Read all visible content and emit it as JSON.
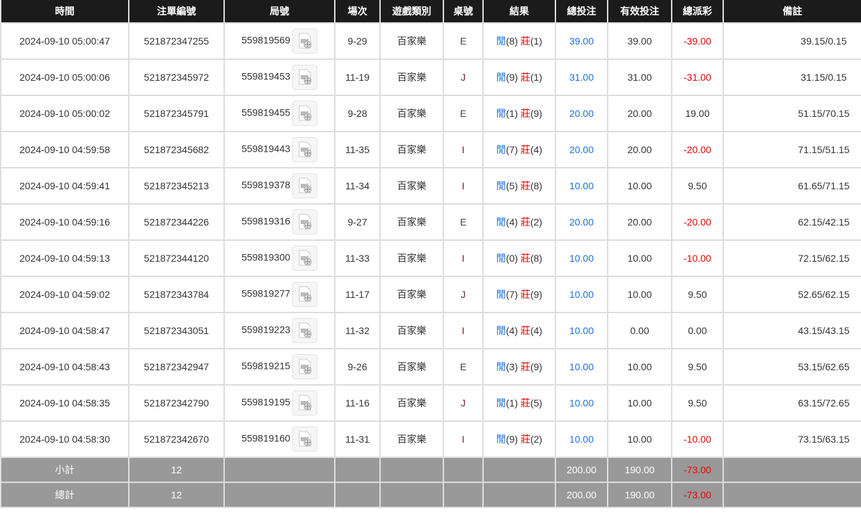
{
  "headers": [
    "時間",
    "注單編號",
    "局號",
    "場次",
    "遊戲類別",
    "桌號",
    "結果",
    "總投注",
    "有效投注",
    "總派彩",
    "備註"
  ],
  "rows": [
    {
      "time": "2024-09-10 05:00:47",
      "bet_id": "521872347255",
      "round": "559819569",
      "session": "9-29",
      "game": "百家樂",
      "table": "E",
      "player_label": "閒",
      "player": "(8)",
      "banker_label": "莊",
      "banker": "(1)",
      "total_bet": "39.00",
      "valid_bet": "39.00",
      "payout": "-39.00",
      "payout_negative": true,
      "remark": "39.15/0.15"
    },
    {
      "time": "2024-09-10 05:00:06",
      "bet_id": "521872345972",
      "round": "559819453",
      "session": "11-19",
      "game": "百家樂",
      "table": "J",
      "player_label": "閒",
      "player": "(9)",
      "banker_label": "莊",
      "banker": "(1)",
      "total_bet": "31.00",
      "valid_bet": "31.00",
      "payout": "-31.00",
      "payout_negative": true,
      "remark": "31.15/0.15"
    },
    {
      "time": "2024-09-10 05:00:02",
      "bet_id": "521872345791",
      "round": "559819455",
      "session": "9-28",
      "game": "百家樂",
      "table": "E",
      "player_label": "閒",
      "player": "(1)",
      "banker_label": "莊",
      "banker": "(9)",
      "total_bet": "20.00",
      "valid_bet": "20.00",
      "payout": "19.00",
      "payout_negative": false,
      "remark": "51.15/70.15"
    },
    {
      "time": "2024-09-10 04:59:58",
      "bet_id": "521872345682",
      "round": "559819443",
      "session": "11-35",
      "game": "百家樂",
      "table": "I",
      "player_label": "閒",
      "player": "(7)",
      "banker_label": "莊",
      "banker": "(4)",
      "total_bet": "20.00",
      "valid_bet": "20.00",
      "payout": "-20.00",
      "payout_negative": true,
      "remark": "71.15/51.15"
    },
    {
      "time": "2024-09-10 04:59:41",
      "bet_id": "521872345213",
      "round": "559819378",
      "session": "11-34",
      "game": "百家樂",
      "table": "I",
      "player_label": "閒",
      "player": "(5)",
      "banker_label": "莊",
      "banker": "(8)",
      "total_bet": "10.00",
      "valid_bet": "10.00",
      "payout": "9.50",
      "payout_negative": false,
      "remark": "61.65/71.15"
    },
    {
      "time": "2024-09-10 04:59:16",
      "bet_id": "521872344226",
      "round": "559819316",
      "session": "9-27",
      "game": "百家樂",
      "table": "E",
      "player_label": "閒",
      "player": "(4)",
      "banker_label": "莊",
      "banker": "(2)",
      "total_bet": "20.00",
      "valid_bet": "20.00",
      "payout": "-20.00",
      "payout_negative": true,
      "remark": "62.15/42.15"
    },
    {
      "time": "2024-09-10 04:59:13",
      "bet_id": "521872344120",
      "round": "559819300",
      "session": "11-33",
      "game": "百家樂",
      "table": "I",
      "player_label": "閒",
      "player": "(0)",
      "banker_label": "莊",
      "banker": "(8)",
      "total_bet": "10.00",
      "valid_bet": "10.00",
      "payout": "-10.00",
      "payout_negative": true,
      "remark": "72.15/62.15"
    },
    {
      "time": "2024-09-10 04:59:02",
      "bet_id": "521872343784",
      "round": "559819277",
      "session": "11-17",
      "game": "百家樂",
      "table": "J",
      "player_label": "閒",
      "player": "(7)",
      "banker_label": "莊",
      "banker": "(9)",
      "total_bet": "10.00",
      "valid_bet": "10.00",
      "payout": "9.50",
      "payout_negative": false,
      "remark": "52.65/62.15"
    },
    {
      "time": "2024-09-10 04:58:47",
      "bet_id": "521872343051",
      "round": "559819223",
      "session": "11-32",
      "game": "百家樂",
      "table": "I",
      "player_label": "閒",
      "player": "(4)",
      "banker_label": "莊",
      "banker": "(4)",
      "total_bet": "10.00",
      "valid_bet": "0.00",
      "payout": "0.00",
      "payout_negative": false,
      "remark": "43.15/43.15"
    },
    {
      "time": "2024-09-10 04:58:43",
      "bet_id": "521872342947",
      "round": "559819215",
      "session": "9-26",
      "game": "百家樂",
      "table": "E",
      "player_label": "閒",
      "player": "(3)",
      "banker_label": "莊",
      "banker": "(9)",
      "total_bet": "10.00",
      "valid_bet": "10.00",
      "payout": "9.50",
      "payout_negative": false,
      "remark": "53.15/62.65"
    },
    {
      "time": "2024-09-10 04:58:35",
      "bet_id": "521872342790",
      "round": "559819195",
      "session": "11-16",
      "game": "百家樂",
      "table": "J",
      "player_label": "閒",
      "player": "(1)",
      "banker_label": "莊",
      "banker": "(5)",
      "total_bet": "10.00",
      "valid_bet": "10.00",
      "payout": "9.50",
      "payout_negative": false,
      "remark": "63.15/72.65"
    },
    {
      "time": "2024-09-10 04:58:30",
      "bet_id": "521872342670",
      "round": "559819160",
      "session": "11-31",
      "game": "百家樂",
      "table": "I",
      "player_label": "閒",
      "player": "(9)",
      "banker_label": "莊",
      "banker": "(2)",
      "total_bet": "10.00",
      "valid_bet": "10.00",
      "payout": "-10.00",
      "payout_negative": true,
      "remark": "73.15/63.15"
    }
  ],
  "subtotal": {
    "label": "小計",
    "count": "12",
    "total_bet": "200.00",
    "valid_bet": "190.00",
    "payout": "-73.00"
  },
  "total": {
    "label": "總計",
    "count": "12",
    "total_bet": "200.00",
    "valid_bet": "190.00",
    "payout": "-73.00"
  },
  "colors": {
    "header_bg": "#1b1b1b",
    "player": "#1a6eea",
    "banker": "#ee0000",
    "negative": "#ee0000",
    "summary_bg": "#999999"
  },
  "icons": {
    "replay": "video-file-icon"
  }
}
